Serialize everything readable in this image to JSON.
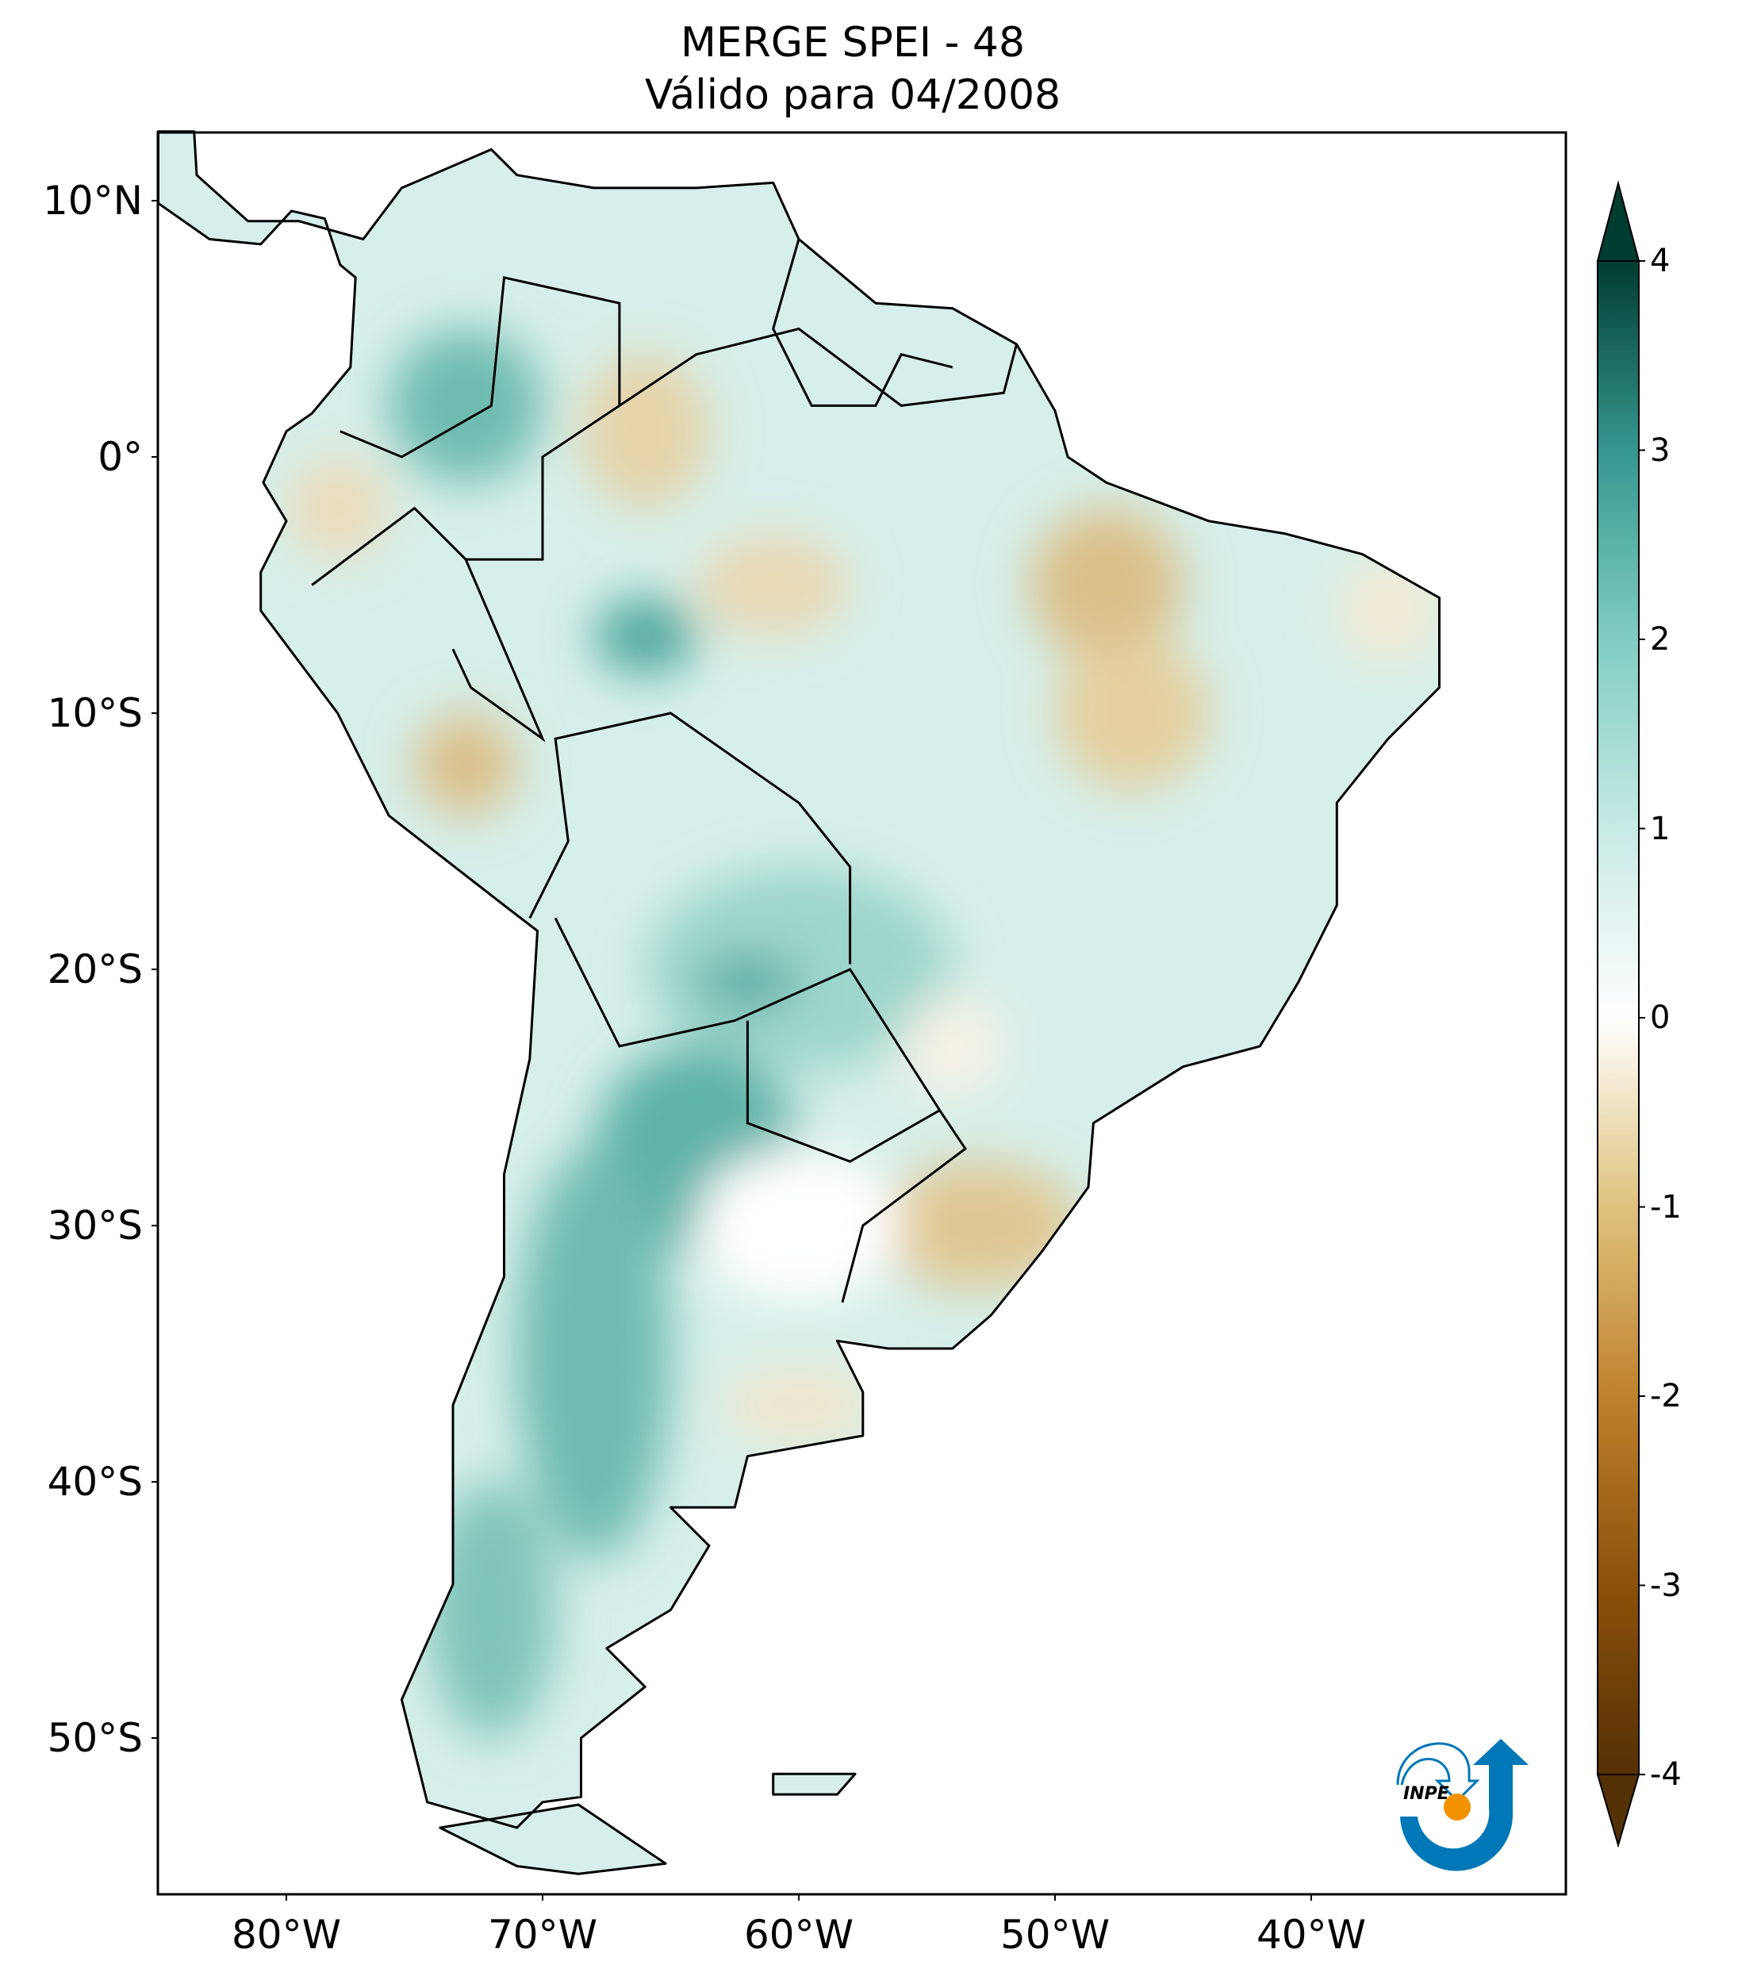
{
  "title": {
    "line1": "MERGE   SPEI - 48",
    "line2": "Válido para 04/2008"
  },
  "axes": {
    "lon_ticks": [
      {
        "value": -80,
        "label": "80°W"
      },
      {
        "value": -70,
        "label": "70°W"
      },
      {
        "value": -60,
        "label": "60°W"
      },
      {
        "value": -50,
        "label": "50°W"
      },
      {
        "value": -40,
        "label": "40°W"
      }
    ],
    "lat_ticks": [
      {
        "value": 10,
        "label": "10°N"
      },
      {
        "value": 0,
        "label": "0°"
      },
      {
        "value": -10,
        "label": "10°S"
      },
      {
        "value": -20,
        "label": "20°S"
      },
      {
        "value": -30,
        "label": "30°S"
      },
      {
        "value": -40,
        "label": "40°S"
      },
      {
        "value": -50,
        "label": "50°S"
      }
    ],
    "lon_range": [
      -85,
      -30
    ],
    "lat_range": [
      -56,
      12.7
    ]
  },
  "colorbar": {
    "ticks": [
      {
        "value": 4,
        "label": "4"
      },
      {
        "value": 3,
        "label": "3"
      },
      {
        "value": 2,
        "label": "2"
      },
      {
        "value": 1,
        "label": "1"
      },
      {
        "value": 0,
        "label": "0"
      },
      {
        "value": -1,
        "label": "-1"
      },
      {
        "value": -2,
        "label": "-2"
      },
      {
        "value": -3,
        "label": "-3"
      },
      {
        "value": -4,
        "label": "-4"
      }
    ],
    "colors": [
      "#543005",
      "#8c510a",
      "#bf812d",
      "#dfc27d",
      "#ffffff",
      "#c7eae5",
      "#80cdc1",
      "#35978f",
      "#003c30"
    ]
  },
  "logo": {
    "text": "INPE",
    "blue": "#0077b6",
    "orange": "#f39200"
  }
}
